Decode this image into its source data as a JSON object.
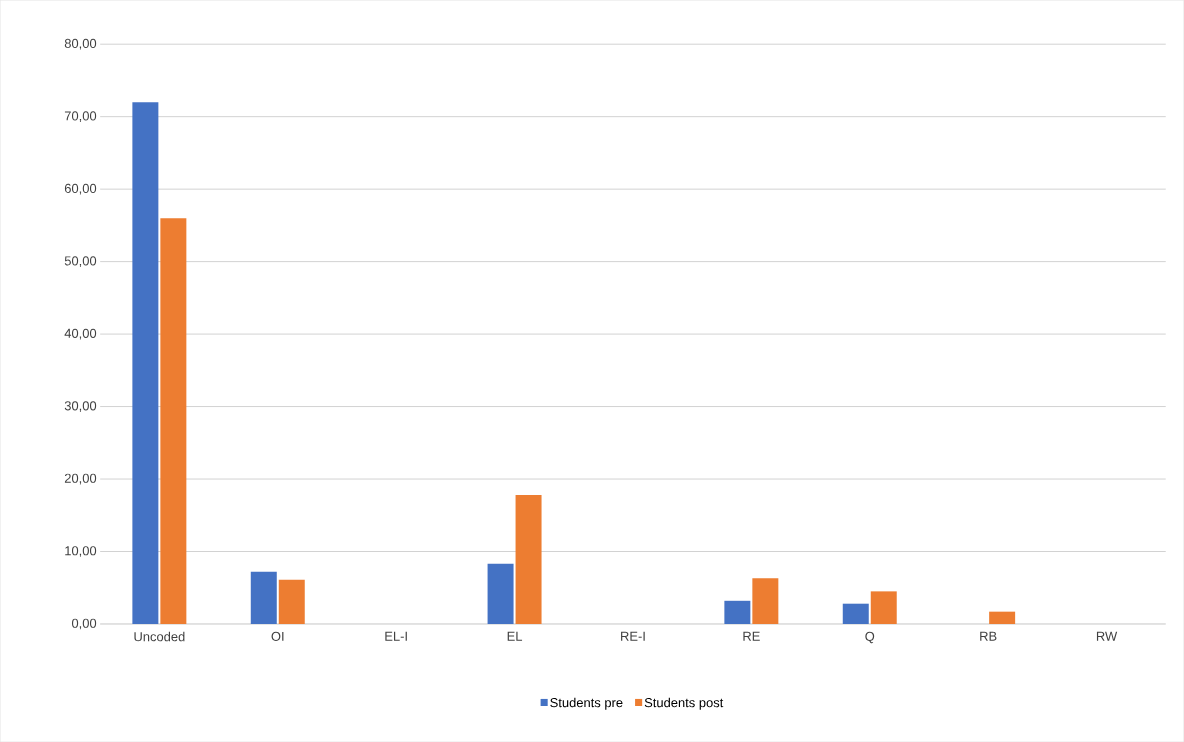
{
  "chart_data": {
    "type": "bar",
    "categories": [
      "Uncoded",
      "OI",
      "EL-I",
      "EL",
      "RE-I",
      "RE",
      "Q",
      "RB",
      "RW"
    ],
    "series": [
      {
        "name": "Students pre",
        "color": "#4472c4",
        "values": [
          72,
          7.2,
          0,
          8.3,
          0,
          3.2,
          2.8,
          0,
          0
        ]
      },
      {
        "name": "Students post",
        "color": "#ed7d31",
        "values": [
          56,
          6.1,
          0,
          17.8,
          0,
          6.3,
          4.5,
          1.7,
          0
        ]
      }
    ],
    "ylim": [
      0,
      80
    ],
    "yticks": [
      {
        "value": 0,
        "label": "0,00"
      },
      {
        "value": 10,
        "label": "10,00"
      },
      {
        "value": 20,
        "label": "20,00"
      },
      {
        "value": 30,
        "label": "30,00"
      },
      {
        "value": 40,
        "label": "40,00"
      },
      {
        "value": 50,
        "label": "50,00"
      },
      {
        "value": 60,
        "label": "60,00"
      },
      {
        "value": 70,
        "label": "70,00"
      },
      {
        "value": 80,
        "label": "80,00"
      }
    ],
    "grid": "y",
    "legend": "bottom"
  }
}
